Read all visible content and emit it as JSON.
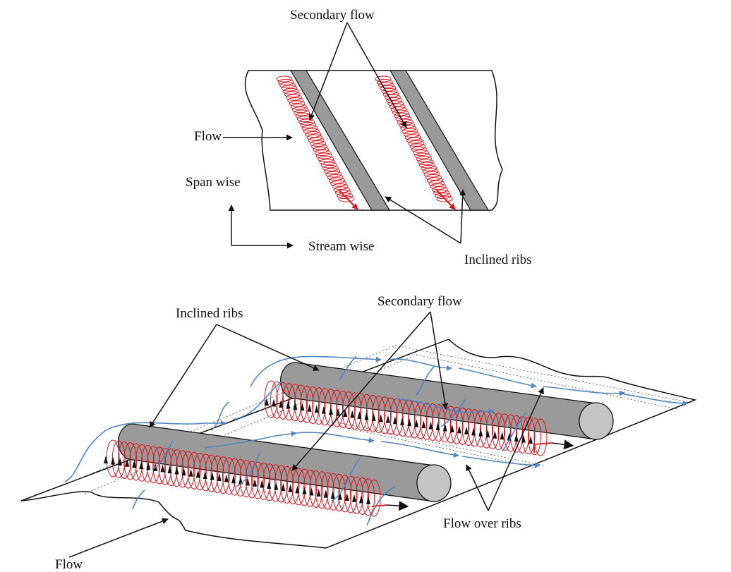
{
  "top_view": {
    "secondary_flow_label": "Secondary flow",
    "flow_label": "Flow",
    "span_wise_label": "Span wise",
    "stream_wise_label": "Stream wise",
    "inclined_ribs_label": "Inclined ribs"
  },
  "iso_view": {
    "inclined_ribs_label": "Inclined ribs",
    "secondary_flow_label": "Secondary flow",
    "flow_over_ribs_label": "Flow over ribs",
    "flow_label": "Flow"
  },
  "colors": {
    "rib_fill": "#9a9a9a",
    "rib_end": "#c4c4c4",
    "vortex": "#e0141c",
    "flow_line": "#4f86c6",
    "outline": "#111111"
  }
}
